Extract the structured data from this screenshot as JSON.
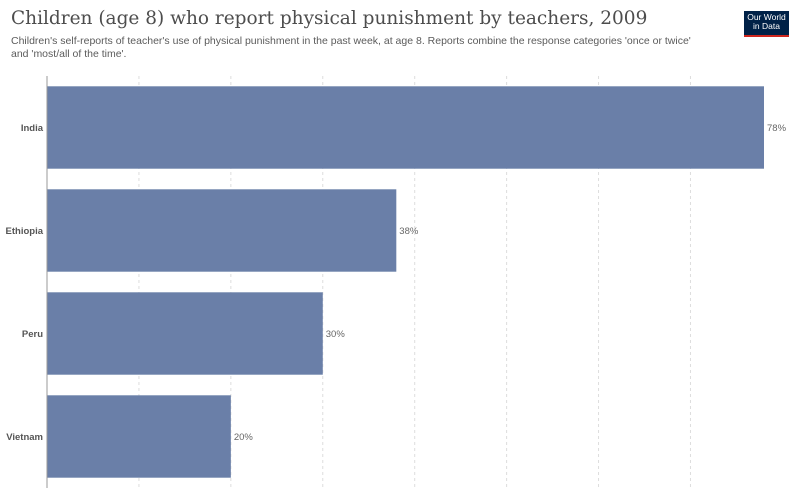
{
  "header": {
    "title": "Children (age 8) who report physical punishment by teachers, 2009",
    "subtitle": "Children's self-reports of teacher's use of physical punishment in the past week, at age 8. Reports combine the response categories 'once or twice' and 'most/all of the time'.",
    "logo": "Our World in Data"
  },
  "colors": {
    "bar": "#6a7fa8",
    "grid": "#dddddd",
    "axis": "#999999"
  },
  "chart_data": {
    "type": "bar",
    "orientation": "horizontal",
    "categories": [
      "India",
      "Ethiopia",
      "Peru",
      "Vietnam"
    ],
    "values": [
      78,
      38,
      30,
      20
    ],
    "value_labels": [
      "78%",
      "38%",
      "30%",
      "20%"
    ],
    "unit": "%",
    "xlim": [
      0,
      78
    ],
    "grid": true
  }
}
